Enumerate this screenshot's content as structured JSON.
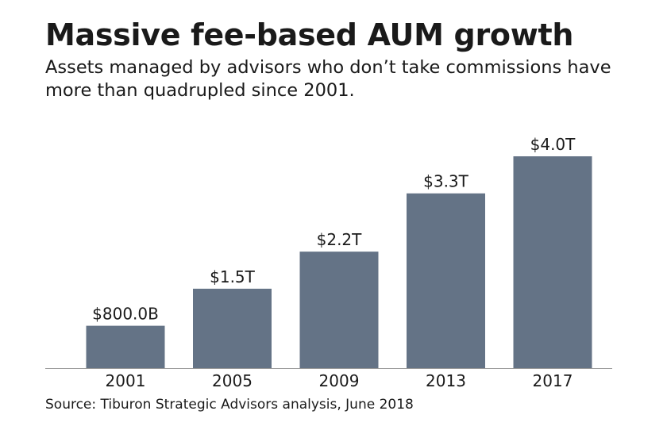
{
  "header": {
    "title": "Massive fee-based AUM growth",
    "subtitle": "Assets managed by advisors who don’t take commissions have more than quadrupled since 2001."
  },
  "footer": {
    "source": "Source: Tiburon Strategic Advisors analysis, June 2018"
  },
  "colors": {
    "bar": "#647386",
    "axis": "#999999"
  },
  "chart_data": {
    "type": "bar",
    "title": "Massive fee-based AUM growth",
    "subtitle": "Assets managed by advisors who don’t take commissions have more than quadrupled since 2001.",
    "xlabel": "",
    "ylabel": "",
    "categories": [
      "2001",
      "2005",
      "2009",
      "2013",
      "2017"
    ],
    "values": [
      0.8,
      1.5,
      2.2,
      3.3,
      4.0
    ],
    "value_unit": "trillion USD",
    "data_labels": [
      "$800.0B",
      "$1.5T",
      "$2.2T",
      "$3.3T",
      "$4.0T"
    ],
    "ylim": [
      0,
      4.0
    ],
    "grid": false,
    "legend": "none"
  }
}
